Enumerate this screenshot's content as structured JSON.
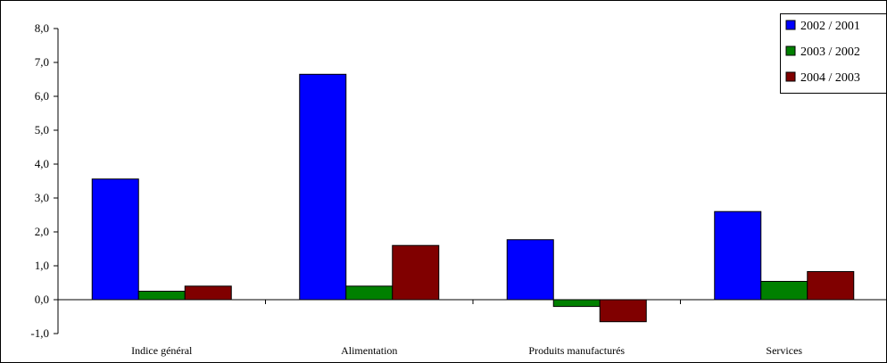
{
  "chart_data": {
    "type": "bar",
    "categories": [
      "Indice général",
      "Alimentation",
      "Produits manufacturés",
      "Services"
    ],
    "series": [
      {
        "name": "2002 / 2001",
        "color": "#0000ff",
        "values": [
          3.56,
          6.65,
          1.77,
          2.6
        ]
      },
      {
        "name": "2003 / 2002",
        "color": "#008000",
        "values": [
          0.25,
          0.4,
          -0.2,
          0.54
        ]
      },
      {
        "name": "2004 / 2003",
        "color": "#800000",
        "values": [
          0.4,
          1.6,
          -0.65,
          0.83
        ]
      }
    ],
    "yticks": [
      "8,0",
      "7,0",
      "6,0",
      "5,0",
      "4,0",
      "3,0",
      "2,0",
      "1,0",
      "0,0",
      "-1,0"
    ],
    "ylim": [
      -1,
      8
    ],
    "grid": false,
    "legend_position": "top-right"
  }
}
